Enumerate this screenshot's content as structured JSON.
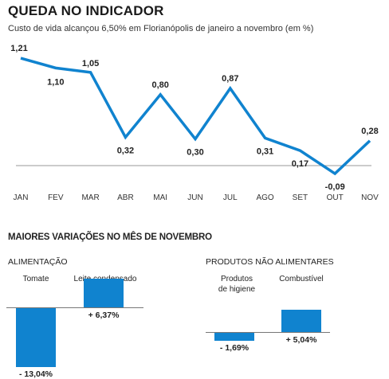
{
  "title": "QUEDA NO INDICADOR",
  "subtitle": "Custo de vida alcançou 6,50% em Florianópolis de janeiro a novembro (em %)",
  "colors": {
    "line": "#1083cf",
    "bar": "#1083cf",
    "axis": "#999999"
  },
  "chart_data": [
    {
      "type": "line",
      "categories": [
        "JAN",
        "FEV",
        "MAR",
        "ABR",
        "MAI",
        "JUN",
        "JUL",
        "AGO",
        "SET",
        "OUT",
        "NOV"
      ],
      "values": [
        1.21,
        1.1,
        1.05,
        0.32,
        0.8,
        0.3,
        0.87,
        0.31,
        0.17,
        -0.09,
        0.28
      ],
      "value_labels": [
        "1,21",
        "1,10",
        "1,05",
        "0,32",
        "0,80",
        "0,30",
        "0,87",
        "0,31",
        "0,17",
        "-0,09",
        "0,28"
      ],
      "title": "QUEDA NO INDICADOR",
      "subtitle": "Custo de vida alcançou 6,50% em Florianópolis de janeiro a novembro (em %)",
      "baseline": 0,
      "grid": false
    },
    {
      "type": "bar",
      "title": "ALIMENTAÇÃO",
      "categories": [
        "Tomate",
        "Leite condensado"
      ],
      "values": [
        -13.04,
        6.37
      ],
      "value_labels": [
        "- 13,04%",
        "+ 6,37%"
      ]
    },
    {
      "type": "bar",
      "title": "PRODUTOS NÃO ALIMENTARES",
      "categories": [
        "Produtos de higiene",
        "Combustível"
      ],
      "values": [
        -1.69,
        5.04
      ],
      "value_labels": [
        "- 1,69%",
        "+ 5,04%"
      ]
    }
  ],
  "section_title": "MAIORES VARIAÇÕES NO MÊS DE NOVEMBRO"
}
